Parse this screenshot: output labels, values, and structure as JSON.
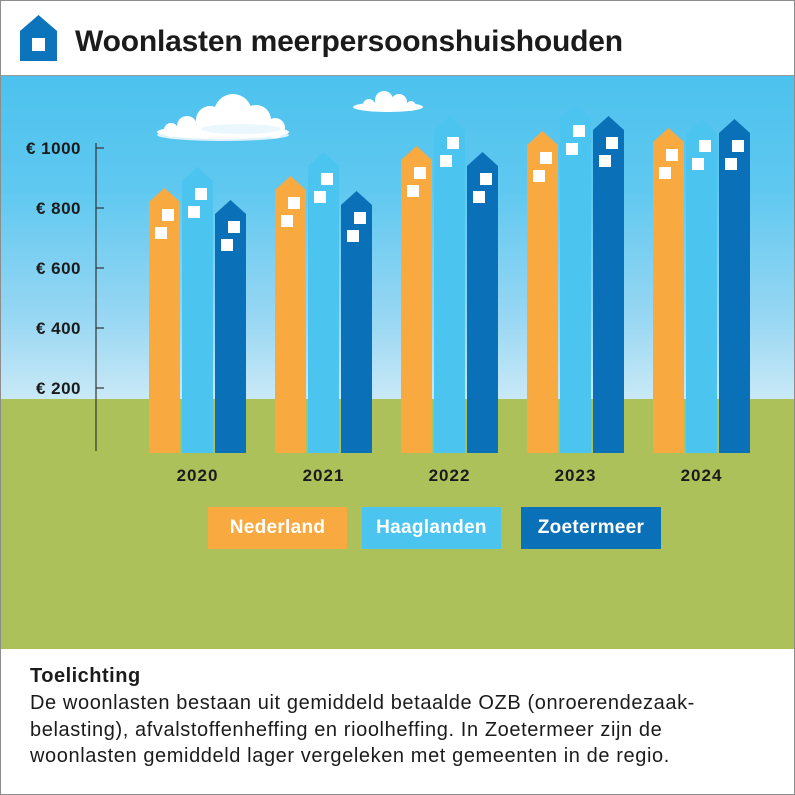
{
  "chart_data": {
    "type": "bar",
    "title": "Woonlasten meerpersoonshuishouden",
    "categories": [
      "2020",
      "2021",
      "2022",
      "2023",
      "2024"
    ],
    "series": [
      {
        "name": "Nederland",
        "color": "#f8a93f",
        "values": [
          820,
          860,
          960,
          1010,
          1020
        ]
      },
      {
        "name": "Haaglanden",
        "color": "#4bc4ef",
        "values": [
          890,
          940,
          1060,
          1100,
          1050
        ]
      },
      {
        "name": "Zoetermeer",
        "color": "#0a70b8",
        "values": [
          780,
          810,
          940,
          1060,
          1050
        ]
      }
    ],
    "y_ticks": [
      200,
      400,
      600,
      800,
      1000
    ],
    "y_tick_labels": [
      "€ 200",
      "€ 400",
      "€ 600",
      "€ 800",
      "€ 1000"
    ],
    "ylim": [
      0,
      1000
    ],
    "grid": false,
    "legend_position": "bottom"
  },
  "footer": {
    "heading": "Toelichting",
    "lines": [
      "De woonlasten bestaan uit gemiddeld betaalde OZB (onroerendezaak-",
      "belasting), afvalstoffenheffing en rioolheffing. In Zoetermeer zijn de",
      "woonlasten gemiddeld lager vergeleken met gemeenten in de regio."
    ]
  },
  "icons": {
    "header": "house-icon"
  },
  "colors": {
    "brand": "#0b74bb",
    "sky": "#4cc2ee",
    "grass": "#adc15a"
  }
}
